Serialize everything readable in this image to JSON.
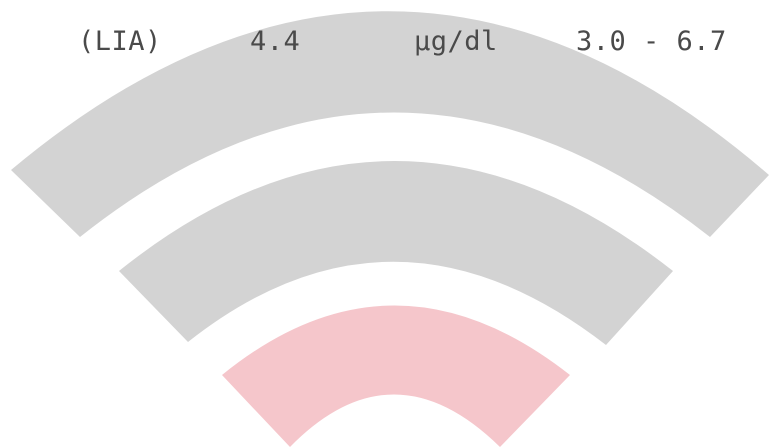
{
  "result_row": {
    "method": "(LIA)",
    "value": "4.4",
    "unit": "µg/dl",
    "reference_range": "3.0 - 6.7"
  },
  "signal_indicator": {
    "level": 1,
    "levels_total": 3,
    "active_color": "#f5c6cb",
    "inactive_color": "#d3d3d3"
  }
}
